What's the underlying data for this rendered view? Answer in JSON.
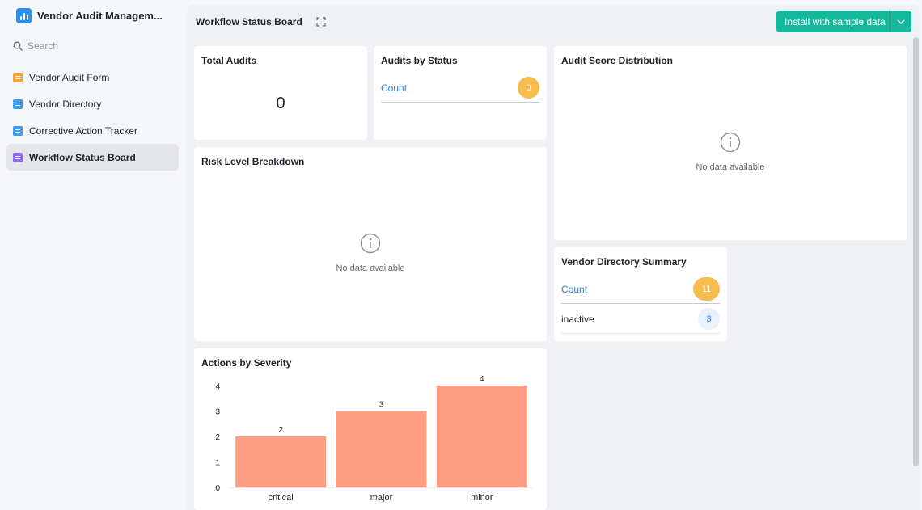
{
  "sidebar": {
    "app_title": "Vendor Audit Managem...",
    "search_placeholder": "Search",
    "items": [
      {
        "label": "Vendor Audit Form",
        "icon": "form-icon",
        "color": "#f5a544"
      },
      {
        "label": "Vendor Directory",
        "icon": "table-icon",
        "color": "#3b9cf5"
      },
      {
        "label": "Corrective Action Tracker",
        "icon": "table-icon",
        "color": "#3b9cf5"
      },
      {
        "label": "Workflow Status Board",
        "icon": "dashboard-icon",
        "color": "#8b6cf2",
        "active": true
      }
    ]
  },
  "header": {
    "title": "Workflow Status Board",
    "install_label": "Install with sample data"
  },
  "cards": {
    "total_audits": {
      "title": "Total Audits",
      "value": "0"
    },
    "audits_by_status": {
      "title": "Audits by Status",
      "count_label": "Count",
      "count_value": "0"
    },
    "audit_score": {
      "title": "Audit Score Distribution",
      "empty_text": "No data available"
    },
    "risk_level": {
      "title": "Risk Level Breakdown",
      "empty_text": "No data available"
    },
    "vendor_summary": {
      "title": "Vendor Directory Summary",
      "rows": [
        {
          "label": "Count",
          "value": "11"
        },
        {
          "label": "inactive",
          "value": "3"
        }
      ]
    },
    "actions_by_severity": {
      "title": "Actions by Severity"
    }
  },
  "chart_data": {
    "type": "bar",
    "title": "Actions by Severity",
    "categories": [
      "critical",
      "major",
      "minor"
    ],
    "values": [
      2,
      3,
      4
    ],
    "ylim": [
      0,
      4
    ],
    "yticks": [
      0,
      1,
      2,
      3,
      4
    ],
    "grid": false,
    "bar_color": "#ff9e84"
  }
}
